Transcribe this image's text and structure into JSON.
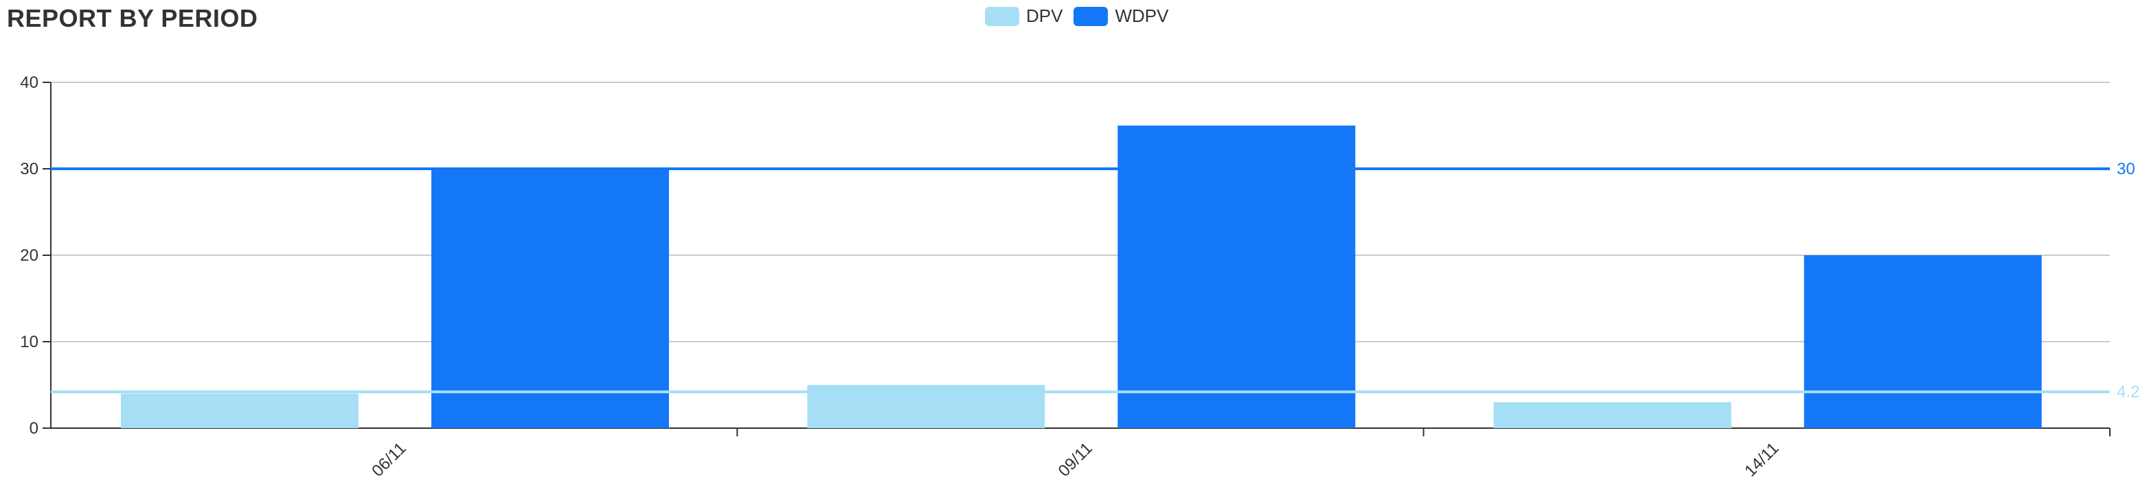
{
  "title": "REPORT BY PERIOD",
  "colors": {
    "dpv": "#a6dff5",
    "wdpv": "#1477f8",
    "axis": "#333333",
    "grid": "#cccccc"
  },
  "chart_data": {
    "type": "bar",
    "title": "REPORT BY PERIOD",
    "categories": [
      "06/11",
      "09/11",
      "14/11"
    ],
    "series": [
      {
        "name": "DPV",
        "values": [
          4,
          5,
          3
        ],
        "color": "#a6dff5"
      },
      {
        "name": "WDPV",
        "values": [
          30,
          35,
          20
        ],
        "color": "#1477f8"
      }
    ],
    "ylim": [
      0,
      40
    ],
    "yticks": [
      0,
      10,
      20,
      30,
      40
    ],
    "grid": true,
    "legend": "top-center",
    "reference_lines": [
      {
        "series": "WDPV",
        "value": 30,
        "label": "30",
        "color": "#1477f8"
      },
      {
        "series": "DPV",
        "value": 4.2,
        "label": "4.2",
        "color": "#a6dff5"
      }
    ]
  }
}
